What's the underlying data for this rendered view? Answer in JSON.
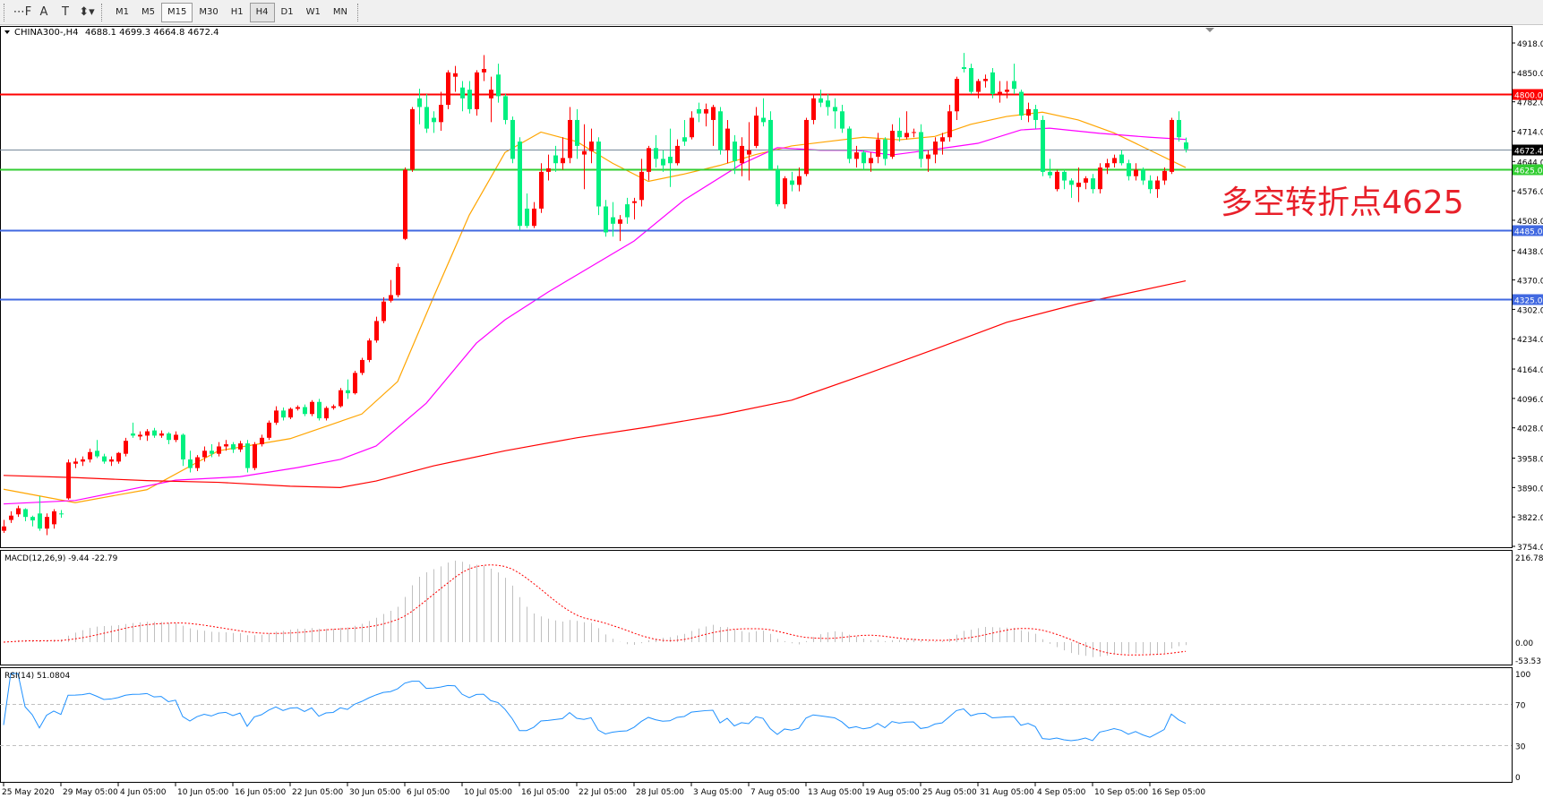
{
  "toolbar": {
    "tools": [
      {
        "name": "text-label-icon",
        "glyph": "⋯F"
      },
      {
        "name": "text-icon",
        "glyph": "A"
      },
      {
        "name": "text-box-icon",
        "glyph": "T"
      },
      {
        "name": "arrows-icon",
        "glyph": "⬍▾"
      }
    ],
    "timeframes": [
      "M1",
      "M5",
      "M15",
      "M30",
      "H1",
      "H4",
      "D1",
      "W1",
      "MN"
    ],
    "boxed": "M15",
    "active": "H4"
  },
  "chart": {
    "header": "CHINA300-,H4",
    "ohlc_text": "4688.1 4699.3 4664.8 4672.4"
  },
  "chart_data": {
    "type": "candlestick",
    "symbol": "CHINA300-",
    "timeframe": "H4",
    "ylim": [
      3754,
      4918
    ],
    "y_ticks": [
      "4918.0",
      "4850.0",
      "4782.0",
      "4714.0",
      "4644.0",
      "4576.0",
      "4508.0",
      "4438.0",
      "4370.0",
      "4302.0",
      "4234.0",
      "4164.0",
      "4096.0",
      "4028.0",
      "3958.0",
      "3890.0",
      "3822.0",
      "3754.0"
    ],
    "x_ticks": [
      "25 May 2020",
      "29 May 05:00",
      "4 Jun 05:00",
      "10 Jun 05:00",
      "16 Jun 05:00",
      "22 Jun 05:00",
      "30 Jun 05:00",
      "6 Jul 05:00",
      "10 Jul 05:00",
      "16 Jul 05:00",
      "22 Jul 05:00",
      "28 Jul 05:00",
      "3 Aug 05:00",
      "7 Aug 05:00",
      "13 Aug 05:00",
      "19 Aug 05:00",
      "25 Aug 05:00",
      "31 Aug 05:00",
      "4 Sep 05:00",
      "10 Sep 05:00",
      "16 Sep 05:00"
    ],
    "x_tick_every_bars": 8,
    "up_color": "#ff0000",
    "down_color": "#00f080",
    "candles": [
      [
        3790,
        3815,
        3785,
        3800
      ],
      [
        3815,
        3835,
        3808,
        3825
      ],
      [
        3828,
        3848,
        3822,
        3842
      ],
      [
        3840,
        3842,
        3812,
        3822
      ],
      [
        3822,
        3825,
        3800,
        3814
      ],
      [
        3830,
        3870,
        3790,
        3795
      ],
      [
        3795,
        3830,
        3780,
        3822
      ],
      [
        3805,
        3840,
        3795,
        3835
      ],
      [
        3830,
        3838,
        3820,
        3828
      ],
      [
        3865,
        3955,
        3862,
        3948
      ],
      [
        3945,
        3958,
        3935,
        3950
      ],
      [
        3950,
        3962,
        3940,
        3955
      ],
      [
        3955,
        3980,
        3948,
        3972
      ],
      [
        3975,
        4000,
        3958,
        3962
      ],
      [
        3962,
        3968,
        3945,
        3950
      ],
      [
        3950,
        3962,
        3940,
        3955
      ],
      [
        3950,
        3972,
        3945,
        3970
      ],
      [
        3968,
        4005,
        3962,
        3998
      ],
      [
        4015,
        4040,
        4005,
        4010
      ],
      [
        4008,
        4020,
        4000,
        4012
      ],
      [
        4010,
        4025,
        3998,
        4020
      ],
      [
        4022,
        4028,
        4005,
        4010
      ],
      [
        4010,
        4022,
        4005,
        4015
      ],
      [
        4015,
        4018,
        3990,
        4000
      ],
      [
        4000,
        4020,
        3995,
        4012
      ],
      [
        4012,
        4015,
        3940,
        3955
      ],
      [
        3955,
        3975,
        3925,
        3935
      ],
      [
        3935,
        3965,
        3928,
        3960
      ],
      [
        3960,
        3985,
        3950,
        3975
      ],
      [
        3975,
        3990,
        3960,
        3968
      ],
      [
        3968,
        3995,
        3962,
        3985
      ],
      [
        3985,
        4000,
        3975,
        3990
      ],
      [
        3990,
        3995,
        3970,
        3978
      ],
      [
        3978,
        3998,
        3972,
        3992
      ],
      [
        3992,
        4000,
        3925,
        3935
      ],
      [
        3935,
        3995,
        3930,
        3990
      ],
      [
        3990,
        4012,
        3985,
        4005
      ],
      [
        4005,
        4045,
        4000,
        4040
      ],
      [
        4040,
        4078,
        4035,
        4068
      ],
      [
        4068,
        4075,
        4045,
        4052
      ],
      [
        4052,
        4075,
        4048,
        4072
      ],
      [
        4072,
        4080,
        4068,
        4076
      ],
      [
        4076,
        4082,
        4055,
        4060
      ],
      [
        4060,
        4092,
        4055,
        4088
      ],
      [
        4088,
        4095,
        4045,
        4050
      ],
      [
        4050,
        4078,
        4045,
        4074
      ],
      [
        4074,
        4082,
        4070,
        4078
      ],
      [
        4078,
        4120,
        4075,
        4115
      ],
      [
        4115,
        4140,
        4095,
        4108
      ],
      [
        4108,
        4160,
        4105,
        4155
      ],
      [
        4155,
        4190,
        4150,
        4185
      ],
      [
        4185,
        4235,
        4180,
        4230
      ],
      [
        4230,
        4285,
        4225,
        4275
      ],
      [
        4275,
        4330,
        4270,
        4320
      ],
      [
        4322,
        4370,
        4318,
        4335
      ],
      [
        4335,
        4408,
        4330,
        4400
      ],
      [
        4465,
        4630,
        4462,
        4625
      ],
      [
        4625,
        4770,
        4620,
        4765
      ],
      [
        4790,
        4812,
        4730,
        4770
      ],
      [
        4770,
        4800,
        4710,
        4720
      ],
      [
        4745,
        4760,
        4710,
        4735
      ],
      [
        4735,
        4805,
        4715,
        4775
      ],
      [
        4775,
        4855,
        4765,
        4850
      ],
      [
        4840,
        4865,
        4805,
        4848
      ],
      [
        4815,
        4830,
        4760,
        4790
      ],
      [
        4810,
        4830,
        4755,
        4765
      ],
      [
        4765,
        4855,
        4750,
        4850
      ],
      [
        4850,
        4890,
        4830,
        4858
      ],
      [
        4790,
        4840,
        4735,
        4810
      ],
      [
        4845,
        4870,
        4780,
        4795
      ],
      [
        4795,
        4800,
        4730,
        4740
      ],
      [
        4740,
        4748,
        4640,
        4650
      ],
      [
        4690,
        4700,
        4485,
        4495
      ],
      [
        4535,
        4570,
        4490,
        4495
      ],
      [
        4495,
        4550,
        4490,
        4535
      ],
      [
        4535,
        4640,
        4525,
        4620
      ],
      [
        4620,
        4660,
        4600,
        4628
      ],
      [
        4658,
        4680,
        4620,
        4640
      ],
      [
        4640,
        4700,
        4625,
        4652
      ],
      [
        4652,
        4770,
        4640,
        4740
      ],
      [
        4740,
        4765,
        4650,
        4680
      ],
      [
        4660,
        4730,
        4580,
        4668
      ],
      [
        4668,
        4720,
        4640,
        4690
      ],
      [
        4690,
        4700,
        4520,
        4540
      ],
      [
        4540,
        4555,
        4470,
        4480
      ],
      [
        4515,
        4550,
        4470,
        4500
      ],
      [
        4500,
        4520,
        4460,
        4510
      ],
      [
        4545,
        4560,
        4500,
        4515
      ],
      [
        4548,
        4560,
        4510,
        4552
      ],
      [
        4555,
        4650,
        4540,
        4620
      ],
      [
        4620,
        4680,
        4600,
        4675
      ],
      [
        4675,
        4705,
        4630,
        4650
      ],
      [
        4650,
        4670,
        4620,
        4635
      ],
      [
        4655,
        4720,
        4585,
        4640
      ],
      [
        4640,
        4695,
        4635,
        4680
      ],
      [
        4700,
        4740,
        4680,
        4690
      ],
      [
        4700,
        4760,
        4695,
        4745
      ],
      [
        4765,
        4780,
        4735,
        4755
      ],
      [
        4755,
        4778,
        4725,
        4765
      ],
      [
        4740,
        4775,
        4680,
        4770
      ],
      [
        4760,
        4770,
        4660,
        4670
      ],
      [
        4670,
        4740,
        4640,
        4720
      ],
      [
        4690,
        4705,
        4615,
        4645
      ],
      [
        4640,
        4700,
        4610,
        4680
      ],
      [
        4660,
        4735,
        4600,
        4670
      ],
      [
        4680,
        4770,
        4675,
        4750
      ],
      [
        4745,
        4790,
        4725,
        4735
      ],
      [
        4740,
        4760,
        4625,
        4625
      ],
      [
        4625,
        4635,
        4540,
        4545
      ],
      [
        4545,
        4610,
        4535,
        4605
      ],
      [
        4600,
        4620,
        4575,
        4590
      ],
      [
        4590,
        4630,
        4575,
        4610
      ],
      [
        4615,
        4745,
        4610,
        4740
      ],
      [
        4740,
        4800,
        4730,
        4790
      ],
      [
        4790,
        4810,
        4770,
        4780
      ],
      [
        4785,
        4800,
        4750,
        4770
      ],
      [
        4770,
        4790,
        4720,
        4760
      ],
      [
        4760,
        4775,
        4710,
        4720
      ],
      [
        4720,
        4725,
        4640,
        4650
      ],
      [
        4650,
        4680,
        4630,
        4665
      ],
      [
        4665,
        4670,
        4625,
        4640
      ],
      [
        4640,
        4665,
        4620,
        4652
      ],
      [
        4655,
        4710,
        4640,
        4695
      ],
      [
        4695,
        4700,
        4635,
        4650
      ],
      [
        4655,
        4730,
        4650,
        4715
      ],
      [
        4715,
        4745,
        4690,
        4700
      ],
      [
        4700,
        4760,
        4695,
        4710
      ],
      [
        4710,
        4720,
        4700,
        4712
      ],
      [
        4712,
        4730,
        4630,
        4650
      ],
      [
        4650,
        4670,
        4620,
        4660
      ],
      [
        4660,
        4700,
        4640,
        4690
      ],
      [
        4690,
        4710,
        4660,
        4700
      ],
      [
        4700,
        4775,
        4690,
        4760
      ],
      [
        4760,
        4840,
        4740,
        4835
      ],
      [
        4862,
        4895,
        4850,
        4858
      ],
      [
        4860,
        4870,
        4800,
        4805
      ],
      [
        4805,
        4835,
        4790,
        4830
      ],
      [
        4830,
        4845,
        4815,
        4835
      ],
      [
        4850,
        4860,
        4790,
        4800
      ],
      [
        4800,
        4830,
        4780,
        4805
      ],
      [
        4805,
        4830,
        4790,
        4810
      ],
      [
        4830,
        4870,
        4800,
        4812
      ],
      [
        4805,
        4810,
        4740,
        4750
      ],
      [
        4750,
        4780,
        4735,
        4765
      ],
      [
        4765,
        4775,
        4720,
        4740
      ],
      [
        4740,
        4750,
        4610,
        4620
      ],
      [
        4620,
        4650,
        4605,
        4612
      ],
      [
        4580,
        4625,
        4575,
        4620
      ],
      [
        4620,
        4625,
        4580,
        4600
      ],
      [
        4600,
        4605,
        4560,
        4590
      ],
      [
        4585,
        4630,
        4550,
        4595
      ],
      [
        4595,
        4610,
        4580,
        4605
      ],
      [
        4605,
        4615,
        4570,
        4580
      ],
      [
        4580,
        4640,
        4570,
        4630
      ],
      [
        4630,
        4650,
        4615,
        4640
      ],
      [
        4640,
        4660,
        4630,
        4652
      ],
      [
        4660,
        4670,
        4635,
        4640
      ],
      [
        4640,
        4648,
        4600,
        4610
      ],
      [
        4610,
        4640,
        4600,
        4625
      ],
      [
        4625,
        4630,
        4590,
        4600
      ],
      [
        4600,
        4612,
        4570,
        4580
      ],
      [
        4580,
        4610,
        4560,
        4600
      ],
      [
        4600,
        4630,
        4590,
        4622
      ],
      [
        4620,
        4745,
        4615,
        4740
      ],
      [
        4740,
        4760,
        4690,
        4700
      ],
      [
        4688.1,
        4699.3,
        4664.8,
        4672.4
      ]
    ],
    "ma_lines": [
      {
        "color": "#ffa500",
        "points": [
          [
            0,
            3886
          ],
          [
            10,
            3855
          ],
          [
            20,
            3885
          ],
          [
            30,
            3975
          ],
          [
            40,
            4003
          ],
          [
            50,
            4060
          ],
          [
            55,
            4135
          ],
          [
            60,
            4330
          ],
          [
            65,
            4520
          ],
          [
            70,
            4665
          ],
          [
            75,
            4712
          ],
          [
            80,
            4690
          ],
          [
            85,
            4640
          ],
          [
            90,
            4598
          ],
          [
            95,
            4615
          ],
          [
            100,
            4635
          ],
          [
            105,
            4660
          ],
          [
            110,
            4680
          ],
          [
            115,
            4690
          ],
          [
            120,
            4700
          ],
          [
            125,
            4694
          ],
          [
            130,
            4702
          ],
          [
            135,
            4730
          ],
          [
            140,
            4748
          ],
          [
            145,
            4758
          ],
          [
            150,
            4740
          ],
          [
            155,
            4710
          ],
          [
            160,
            4670
          ],
          [
            165,
            4630
          ]
        ]
      },
      {
        "color": "#ff00ff",
        "points": [
          [
            0,
            3852
          ],
          [
            10,
            3860
          ],
          [
            16,
            3880
          ],
          [
            24,
            3907
          ],
          [
            33,
            3915
          ],
          [
            41,
            3936
          ],
          [
            47,
            3955
          ],
          [
            52,
            3986
          ],
          [
            59,
            4085
          ],
          [
            66,
            4224
          ],
          [
            70,
            4278
          ],
          [
            76,
            4342
          ],
          [
            88,
            4460
          ],
          [
            95,
            4555
          ],
          [
            103,
            4638
          ],
          [
            108,
            4676
          ],
          [
            114,
            4670
          ],
          [
            119,
            4670
          ],
          [
            124,
            4659
          ],
          [
            130,
            4672
          ],
          [
            136,
            4686
          ],
          [
            142,
            4717
          ],
          [
            146,
            4721
          ],
          [
            153,
            4709
          ],
          [
            160,
            4700
          ],
          [
            165,
            4695
          ]
        ]
      },
      {
        "color": "#ff0000",
        "points": [
          [
            0,
            3918
          ],
          [
            10,
            3913
          ],
          [
            20,
            3906
          ],
          [
            30,
            3902
          ],
          [
            40,
            3893
          ],
          [
            47,
            3890
          ],
          [
            52,
            3905
          ],
          [
            60,
            3940
          ],
          [
            70,
            3975
          ],
          [
            80,
            4005
          ],
          [
            90,
            4030
          ],
          [
            100,
            4058
          ],
          [
            110,
            4092
          ],
          [
            120,
            4150
          ],
          [
            130,
            4210
          ],
          [
            140,
            4272
          ],
          [
            150,
            4315
          ],
          [
            156,
            4336
          ],
          [
            165,
            4368
          ]
        ]
      }
    ],
    "levels": [
      {
        "value": 4800,
        "label": "4800.0",
        "color": "#ff0000"
      },
      {
        "value": 4625,
        "label": "4625.0",
        "color": "#32cd32"
      },
      {
        "value": 4485,
        "label": "4485.0",
        "color": "#4169e1"
      },
      {
        "value": 4325,
        "label": "4325.0",
        "color": "#4169e1"
      }
    ],
    "current_price": {
      "value": 4672.4,
      "label": "4672.4",
      "color": "#778899"
    },
    "annotation": {
      "text": "多空转折点4625",
      "color": "#e8202a",
      "price": 4625
    },
    "macd": {
      "label": "MACD(12,26,9) -9.44 -22.79",
      "fast": 12,
      "slow": 26,
      "signal": 9,
      "ylim": [
        -53.53,
        216.78
      ],
      "ticks": [
        "216.78",
        "0.00",
        "-53.53"
      ],
      "hist_color": "#c0c0c0",
      "signal_color": "#ff0000"
    },
    "rsi": {
      "label": "RSI(14) 51.0804",
      "period": 14,
      "ticks": [
        "100",
        "70",
        "30",
        "0"
      ],
      "levels": [
        70,
        30
      ],
      "color": "#1e90ff"
    }
  }
}
